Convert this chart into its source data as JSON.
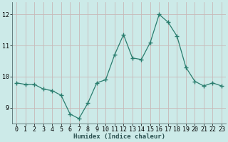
{
  "x": [
    0,
    1,
    2,
    3,
    4,
    5,
    6,
    7,
    8,
    9,
    10,
    11,
    12,
    13,
    14,
    15,
    16,
    17,
    18,
    19,
    20,
    21,
    22,
    23
  ],
  "y": [
    9.8,
    9.75,
    9.75,
    9.6,
    9.55,
    9.4,
    8.8,
    8.65,
    9.15,
    9.8,
    9.9,
    10.7,
    11.35,
    10.6,
    10.55,
    11.1,
    12.0,
    11.75,
    11.3,
    10.3,
    9.85,
    9.7,
    9.8,
    9.7
  ],
  "line_color": "#2a7d6e",
  "marker": "+",
  "marker_size": 4,
  "bg_color": "#cceae8",
  "grid_color": "#c8b8b8",
  "xlabel": "Humidex (Indice chaleur)",
  "ylim": [
    8.5,
    12.4
  ],
  "yticks": [
    9,
    10,
    11,
    12
  ],
  "xticks": [
    0,
    1,
    2,
    3,
    4,
    5,
    6,
    7,
    8,
    9,
    10,
    11,
    12,
    13,
    14,
    15,
    16,
    17,
    18,
    19,
    20,
    21,
    22,
    23
  ],
  "label_fontsize": 6.5,
  "tick_fontsize": 6.0
}
